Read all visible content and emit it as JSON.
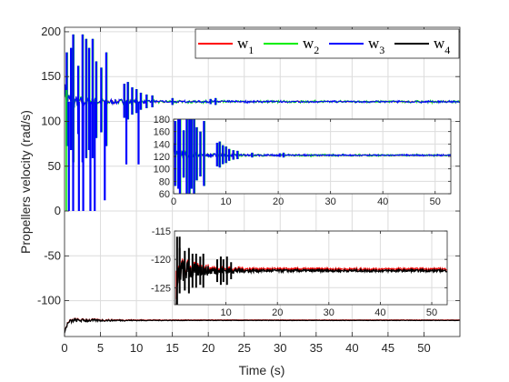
{
  "chart_data": {
    "type": "line",
    "xlabel": "Time (s)",
    "ylabel": "Propellers velocity (rad/s)",
    "xlim": [
      0,
      55
    ],
    "ylim": [
      -140,
      205
    ],
    "xticks": [
      0,
      5,
      10,
      15,
      20,
      25,
      30,
      35,
      40,
      45,
      50
    ],
    "yticks": [
      -100,
      -50,
      0,
      50,
      100,
      150,
      200
    ],
    "grid": true,
    "legend_position": "top-right",
    "series": [
      {
        "name": "w",
        "sub": "1",
        "color": "#ff0000",
        "steady_value": 122
      },
      {
        "name": "w",
        "sub": "2",
        "color": "#00ee00",
        "steady_value": 122
      },
      {
        "name": "w",
        "sub": "3",
        "color": "#0000ff",
        "steady_value": 122
      },
      {
        "name": "w",
        "sub": "4",
        "color": "#000000",
        "steady_value": -122
      }
    ],
    "insets": [
      {
        "xlim": [
          0,
          53
        ],
        "ylim": [
          60,
          180
        ],
        "xticks": [
          0,
          10,
          20,
          30,
          40,
          50
        ],
        "yticks": [
          60,
          80,
          100,
          120,
          140,
          160,
          180
        ],
        "series_shown": [
          "w1",
          "w2",
          "w3"
        ]
      },
      {
        "xlim": [
          0,
          53
        ],
        "ylim": [
          -128,
          -115
        ],
        "xticks": [
          10,
          20,
          30,
          40,
          50
        ],
        "yticks": [
          -125,
          -120,
          -115
        ],
        "series_shown": [
          "w4"
        ]
      }
    ]
  }
}
